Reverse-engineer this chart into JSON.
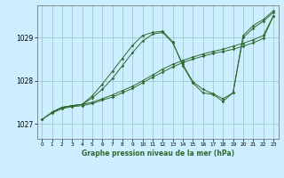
{
  "xlabel": "Graphe pression niveau de la mer (hPa)",
  "xlim": [
    -0.5,
    23.5
  ],
  "ylim": [
    1026.65,
    1029.75
  ],
  "yticks": [
    1027,
    1028,
    1029
  ],
  "xticks": [
    0,
    1,
    2,
    3,
    4,
    5,
    6,
    7,
    8,
    9,
    10,
    11,
    12,
    13,
    14,
    15,
    16,
    17,
    18,
    19,
    20,
    21,
    22,
    23
  ],
  "background_color": "#cceeff",
  "grid_color": "#99cccc",
  "line_color": "#2d6a2d",
  "series": [
    {
      "x": [
        0,
        1,
        2,
        3,
        4,
        5,
        6,
        7,
        8,
        9,
        10,
        11,
        12,
        13,
        14,
        15,
        16,
        17,
        18,
        19,
        20,
        21,
        22,
        23
      ],
      "y": [
        1027.1,
        1027.25,
        1027.35,
        1027.4,
        1027.42,
        1027.47,
        1027.55,
        1027.62,
        1027.72,
        1027.82,
        1027.95,
        1028.08,
        1028.2,
        1028.32,
        1028.42,
        1028.5,
        1028.57,
        1028.63,
        1028.68,
        1028.73,
        1028.8,
        1028.88,
        1028.98,
        1029.5
      ]
    },
    {
      "x": [
        0,
        1,
        2,
        3,
        4,
        5,
        6,
        7,
        8,
        9,
        10,
        11,
        12,
        13,
        14,
        15,
        16,
        17,
        18,
        19,
        20,
        21,
        22,
        23
      ],
      "y": [
        1027.1,
        1027.27,
        1027.38,
        1027.42,
        1027.45,
        1027.5,
        1027.58,
        1027.67,
        1027.77,
        1027.87,
        1028.0,
        1028.13,
        1028.27,
        1028.38,
        1028.47,
        1028.55,
        1028.62,
        1028.68,
        1028.73,
        1028.8,
        1028.87,
        1028.95,
        1029.05,
        1029.5
      ]
    },
    {
      "x": [
        1,
        2,
        3,
        4,
        5,
        6,
        7,
        8,
        9,
        10,
        11,
        12,
        13,
        14,
        15,
        16,
        17,
        18,
        19,
        20,
        21,
        22,
        23
      ],
      "y": [
        1027.27,
        1027.38,
        1027.42,
        1027.45,
        1027.6,
        1027.8,
        1028.05,
        1028.35,
        1028.65,
        1028.92,
        1029.08,
        1029.12,
        1028.88,
        1028.38,
        1027.98,
        1027.8,
        1027.7,
        1027.58,
        1027.72,
        1029.0,
        1029.22,
        1029.38,
        1029.58
      ]
    },
    {
      "x": [
        1,
        2,
        3,
        4,
        5,
        6,
        7,
        8,
        9,
        10,
        11,
        12,
        13,
        14,
        15,
        16,
        17,
        18,
        19,
        20,
        21,
        22,
        23
      ],
      "y": [
        1027.27,
        1027.38,
        1027.42,
        1027.45,
        1027.65,
        1027.92,
        1028.22,
        1028.52,
        1028.82,
        1029.05,
        1029.12,
        1029.15,
        1028.9,
        1028.35,
        1027.95,
        1027.72,
        1027.68,
        1027.52,
        1027.72,
        1029.05,
        1029.28,
        1029.42,
        1029.62
      ]
    }
  ]
}
